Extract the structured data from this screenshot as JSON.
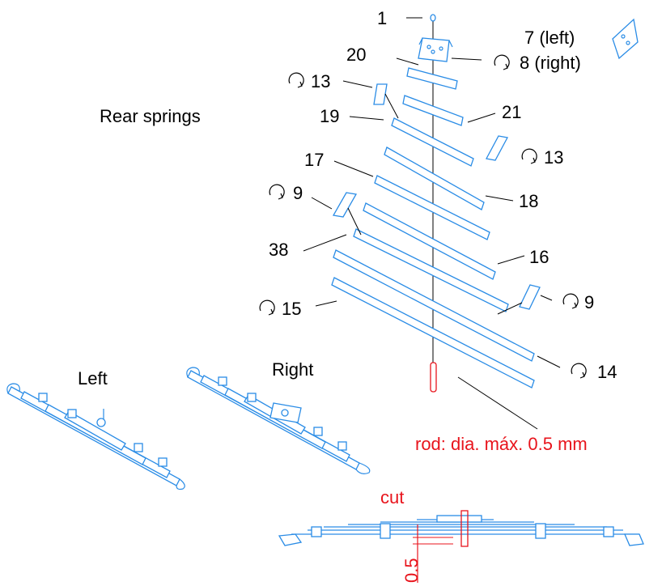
{
  "title": "Rear springs",
  "callouts": {
    "p1": "1",
    "p7": "7 (left)",
    "p8": "8 (right)",
    "p20": "20",
    "p13a": "13",
    "p21": "21",
    "p19": "19",
    "p13b": "13",
    "p17": "17",
    "p18": "18",
    "p9a": "9",
    "p38": "38",
    "p16": "16",
    "p15": "15",
    "p9b": "9",
    "p14": "14"
  },
  "views": {
    "left": "Left",
    "right": "Right"
  },
  "rod_note": "rod: dia. máx. 0.5 mm",
  "cut_label": "cut",
  "dimension": "0.5",
  "colors": {
    "part_stroke": "#2a8ce6",
    "note": "#e8141c",
    "text": "#000000"
  }
}
